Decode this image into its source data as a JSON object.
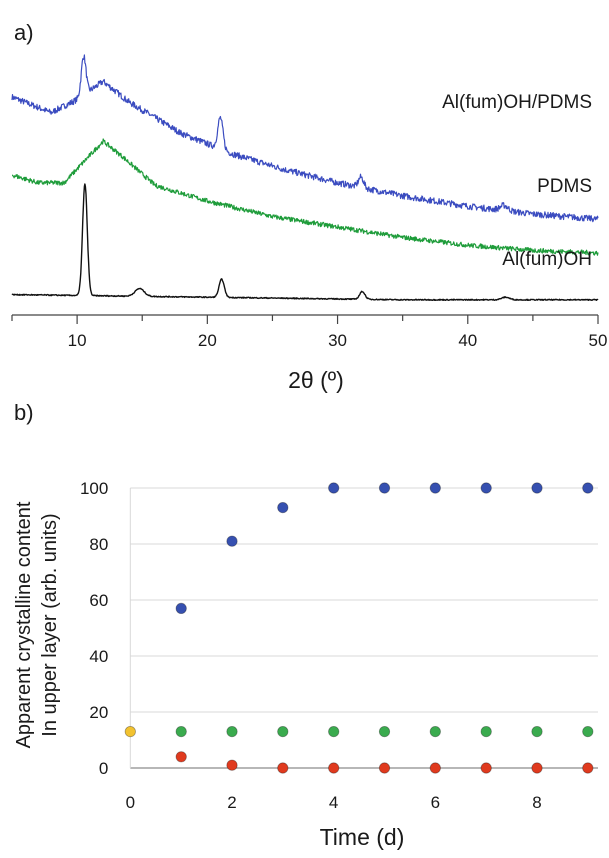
{
  "panels": {
    "a": {
      "label": "a)",
      "chart_data": {
        "type": "line",
        "xlabel": "2θ (º)",
        "xlim": [
          5,
          50
        ],
        "xticks": [
          10,
          20,
          30,
          40,
          50
        ],
        "y_axis_shown": false,
        "series": [
          {
            "name": "Al(fum)OH/PDMS",
            "color": "#3b4cc0",
            "baseline": [
              [
                5,
                0.8
              ],
              [
                8,
                0.74
              ],
              [
                10,
                0.79
              ],
              [
                12,
                0.86
              ],
              [
                14,
                0.78
              ],
              [
                18,
                0.66
              ],
              [
                22,
                0.58
              ],
              [
                26,
                0.52
              ],
              [
                30,
                0.47
              ],
              [
                35,
                0.42
              ],
              [
                40,
                0.38
              ],
              [
                45,
                0.35
              ],
              [
                50,
                0.33
              ]
            ],
            "peaks": [
              [
                10.5,
                0.15,
                0.18
              ],
              [
                21.0,
                0.12,
                0.2
              ],
              [
                31.8,
                0.04,
                0.2
              ],
              [
                42.8,
                0.02,
                0.3
              ]
            ],
            "noise": 0.012
          },
          {
            "name": "PDMS",
            "color": "#1e9c3a",
            "baseline": [
              [
                5,
                0.5
              ],
              [
                7,
                0.47
              ],
              [
                9,
                0.47
              ],
              [
                10.5,
                0.55
              ],
              [
                12,
                0.63
              ],
              [
                13.5,
                0.57
              ],
              [
                16,
                0.46
              ],
              [
                20,
                0.4
              ],
              [
                25,
                0.34
              ],
              [
                30,
                0.3
              ],
              [
                35,
                0.26
              ],
              [
                40,
                0.23
              ],
              [
                45,
                0.21
              ],
              [
                50,
                0.2
              ]
            ],
            "peaks": [],
            "noise": 0.009
          },
          {
            "name": "Al(fum)OH",
            "color": "#111111",
            "baseline": [
              [
                5,
                0.04
              ],
              [
                20,
                0.03
              ],
              [
                35,
                0.02
              ],
              [
                50,
                0.02
              ]
            ],
            "peaks": [
              [
                10.6,
                0.43,
                0.18
              ],
              [
                14.8,
                0.03,
                0.35
              ],
              [
                21.1,
                0.07,
                0.2
              ],
              [
                31.9,
                0.03,
                0.2
              ],
              [
                42.9,
                0.01,
                0.3
              ]
            ],
            "noise": 0.002
          }
        ]
      }
    },
    "b": {
      "label": "b)",
      "chart_data": {
        "type": "scatter",
        "xlabel": "Time (d)",
        "ylabel_line1": "Apparent crystalline content",
        "ylabel_line2": "In upper layer (arb. units)",
        "xlim": [
          -0.4,
          9.2
        ],
        "ylim": [
          0,
          100
        ],
        "xticks": [
          0,
          2,
          4,
          6,
          8
        ],
        "yticks": [
          0,
          20,
          40,
          60,
          80,
          100
        ],
        "grid": "horizontal",
        "series": [
          {
            "color": "#3650b0",
            "x": [
              1,
              2,
              3,
              4,
              5,
              6,
              7,
              8,
              9
            ],
            "y": [
              57,
              81,
              93,
              100,
              100,
              100,
              100,
              100,
              100
            ]
          },
          {
            "color": "#3aab4e",
            "x": [
              1,
              2,
              3,
              4,
              5,
              6,
              7,
              8,
              9
            ],
            "y": [
              13,
              13,
              13,
              13,
              13,
              13,
              13,
              13,
              13
            ]
          },
          {
            "color": "#e03a1e",
            "x": [
              1,
              2,
              3,
              4,
              5,
              6,
              7,
              8,
              9
            ],
            "y": [
              4,
              1,
              0,
              0,
              0,
              0,
              0,
              0,
              0
            ]
          },
          {
            "color": "#f2c230",
            "x": [
              0
            ],
            "y": [
              13
            ]
          }
        ]
      }
    }
  }
}
